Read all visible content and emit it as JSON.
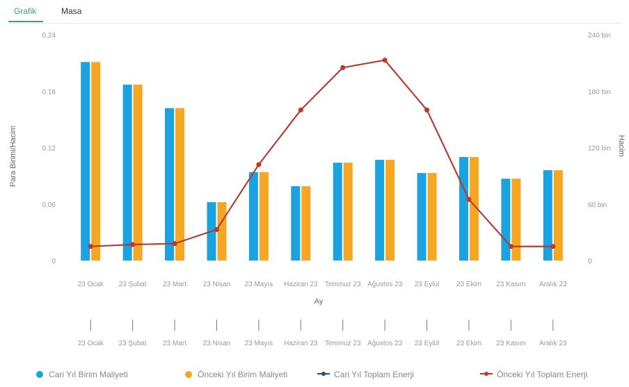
{
  "tabs": {
    "active": "Grafik",
    "other": "Masa"
  },
  "colors": {
    "current_cost": "#1aa3e0",
    "previous_cost": "#f5a623",
    "current_energy": "#1f4e79",
    "previous_energy": "#c0392b"
  },
  "chart_data": {
    "type": "bar",
    "xlabel": "Ay",
    "ylabel_left": "Para Birimi/Hacim",
    "ylabel_right": "Hacim",
    "categories": [
      "23 Ocak",
      "23 Şubat",
      "23 Mart",
      "23 Nisan",
      "23 Mayıs",
      "Haziran 23",
      "Temmuz 23",
      "Ağustos 23",
      "23 Eylül",
      "23 Ekim",
      "23 Kasım",
      "Aralık 23"
    ],
    "yticks_left": [
      "0",
      "0.06",
      "0.12",
      "0.18",
      "0.24"
    ],
    "yticks_right": [
      "0",
      "60 bin",
      "120 bin",
      "180 bin",
      "240 bin"
    ],
    "ylim_left": [
      0,
      0.24
    ],
    "ylim_right": [
      0,
      240000
    ],
    "series": [
      {
        "name": "Cari Yıl Birim Maliyeti",
        "type": "bar",
        "axis": "left",
        "values": [
          0.211,
          0.187,
          0.162,
          0.062,
          0.094,
          0.079,
          0.104,
          0.107,
          0.093,
          0.11,
          0.087,
          0.096
        ]
      },
      {
        "name": "Önceki Yıl Birim Maliyeti",
        "type": "bar",
        "axis": "left",
        "values": [
          0.211,
          0.187,
          0.162,
          0.062,
          0.094,
          0.079,
          0.104,
          0.107,
          0.093,
          0.11,
          0.087,
          0.096
        ]
      },
      {
        "name": "Cari Yıl Toplam Enerji",
        "type": "line",
        "axis": "right",
        "values": [
          15000,
          17000,
          18000,
          33000,
          102000,
          160000,
          205000,
          213000,
          160000,
          65000,
          15000,
          15000
        ]
      },
      {
        "name": "Önceki Yıl Toplam Enerji",
        "type": "line",
        "axis": "right",
        "values": [
          15000,
          17000,
          18000,
          33000,
          102000,
          160000,
          205000,
          213000,
          160000,
          65000,
          15000,
          15000
        ]
      }
    ],
    "grid": false,
    "legend_position": "bottom"
  }
}
